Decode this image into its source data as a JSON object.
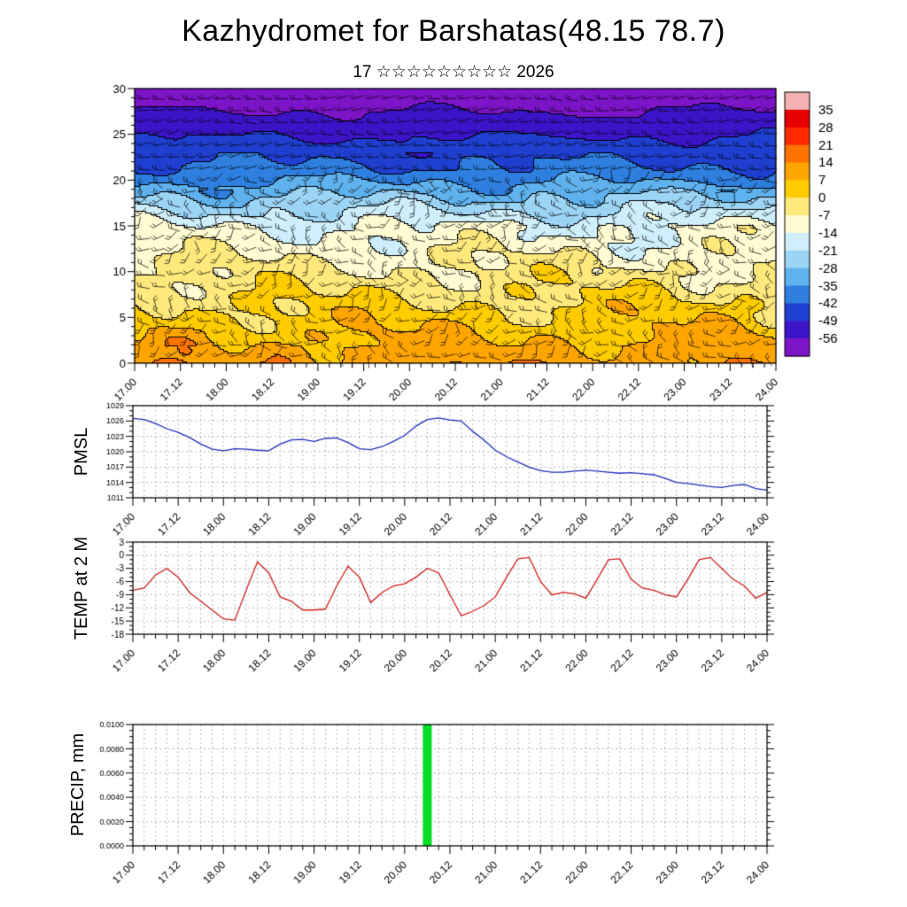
{
  "title": "Kazhydromet for Barshatas(48.15 78.7)",
  "subtitle": "17 ☆☆☆☆☆☆☆☆☆ 2026",
  "panel_labels": {
    "pmsl": "PMSL",
    "temp": "TEMP at 2 M",
    "precip": "PRECIP, mm"
  },
  "time_axis": {
    "tick_labels": [
      "17.00",
      "17.12",
      "18.00",
      "18.12",
      "19.00",
      "19.12",
      "20.00",
      "20.12",
      "21.00",
      "21.12",
      "22.00",
      "22.12",
      "23.00",
      "23.12",
      "24.00"
    ],
    "minor_step_hours": 3
  },
  "times": [
    "17.00",
    "17.03",
    "17.06",
    "17.09",
    "17.12",
    "17.15",
    "17.18",
    "17.21",
    "18.00",
    "18.03",
    "18.06",
    "18.09",
    "18.12",
    "18.15",
    "18.18",
    "18.21",
    "19.00",
    "19.03",
    "19.06",
    "19.09",
    "19.12",
    "19.15",
    "19.18",
    "19.21",
    "20.00",
    "20.03",
    "20.06",
    "20.09",
    "20.12",
    "20.15",
    "20.18",
    "20.21",
    "21.00",
    "21.03",
    "21.06",
    "21.09",
    "21.12",
    "21.15",
    "21.18",
    "21.21",
    "22.00",
    "22.03",
    "22.06",
    "22.09",
    "22.12",
    "22.15",
    "22.18",
    "22.21",
    "23.00",
    "23.03",
    "23.06",
    "23.09",
    "23.12",
    "23.15",
    "23.18",
    "23.21",
    "24.00"
  ],
  "chart_data": [
    {
      "id": "temperature-height-cross-section",
      "type": "heatmap",
      "overlay": "wind-barbs",
      "ylim": [
        0,
        30
      ],
      "yticks": [
        0,
        5,
        10,
        15,
        20,
        25,
        30
      ],
      "x_range_days": [
        17,
        24
      ],
      "colorbar_tick_labels": [
        "35",
        "28",
        "21",
        "14",
        "7",
        "0",
        "-7",
        "-14",
        "-21",
        "-28",
        "-35",
        "-42",
        "-49",
        "-56"
      ],
      "colorbar_colors": [
        "#f5b2b2",
        "#e60000",
        "#ff2a00",
        "#ff7300",
        "#ffa500",
        "#ffcc00",
        "#ffe97d",
        "#fffbd2",
        "#cfeefb",
        "#9cd4f5",
        "#5fb2ee",
        "#2f7fe0",
        "#1f3fd0",
        "#3c14c8",
        "#7d14c8"
      ],
      "approx_profile": {
        "heights": [
          0,
          11,
          15,
          21,
          30
        ],
        "temps": [
          12,
          -7,
          -14,
          -40,
          -62
        ]
      }
    },
    {
      "id": "pmsl",
      "type": "line",
      "label": "PMSL",
      "color": "#1f2fbf",
      "ylim": [
        1011,
        1029
      ],
      "yticks": [
        1011,
        1014,
        1017,
        1020,
        1023,
        1026,
        1029
      ],
      "minor_step": 1,
      "values": [
        1026.5,
        1026.3,
        1025.5,
        1024.5,
        1023.8,
        1022.8,
        1021.5,
        1020.5,
        1020.2,
        1020.6,
        1020.5,
        1020.3,
        1020.2,
        1021.5,
        1022.3,
        1022.4,
        1022.0,
        1022.6,
        1022.7,
        1021.8,
        1020.6,
        1020.4,
        1021.0,
        1022.0,
        1023.2,
        1025.0,
        1026.3,
        1026.6,
        1026.2,
        1026.0,
        1024.0,
        1022.3,
        1020.3,
        1019.0,
        1018.0,
        1017.0,
        1016.3,
        1016.0,
        1016.0,
        1016.2,
        1016.4,
        1016.2,
        1016.0,
        1015.8,
        1015.9,
        1015.7,
        1015.5,
        1014.8,
        1014.0,
        1013.8,
        1013.5,
        1013.2,
        1013.0,
        1013.4,
        1013.6,
        1012.8,
        1012.5
      ]
    },
    {
      "id": "temp-2m",
      "type": "line",
      "label": "TEMP at 2 M",
      "color": "#d02020",
      "ylim": [
        -18,
        3
      ],
      "yticks": [
        3,
        0,
        -3,
        -6,
        -9,
        -12,
        -15,
        -18
      ],
      "minor_step": 1,
      "values": [
        -8,
        -7.5,
        -4.5,
        -3,
        -5,
        -8.5,
        -10.5,
        -12.5,
        -14.5,
        -14.8,
        -8,
        -1.5,
        -4,
        -9.5,
        -10.5,
        -12.5,
        -12.5,
        -12.3,
        -7,
        -2.5,
        -5,
        -10.8,
        -8.5,
        -7.0,
        -6.5,
        -5.0,
        -3.0,
        -4.0,
        -9.0,
        -13.8,
        -12.8,
        -11.5,
        -9.5,
        -5.0,
        -0.8,
        -0.5,
        -6.0,
        -9.0,
        -8.5,
        -8.8,
        -9.8,
        -5.5,
        -1.0,
        -0.8,
        -5.5,
        -7.5,
        -8.0,
        -9.0,
        -9.5,
        -5.5,
        -1.0,
        -0.5,
        -3.0,
        -5.5,
        -7.0,
        -9.8,
        -8.5
      ]
    },
    {
      "id": "precip",
      "type": "bar",
      "label": "PRECIP, mm",
      "color": "#00dd22",
      "ylim": [
        0,
        0.01
      ],
      "ytick_labels": [
        "0.0000",
        "0.0020",
        "0.0040",
        "0.0060",
        "0.0080",
        "0.0100"
      ],
      "minor_step": 0.0005,
      "values": [
        0,
        0,
        0,
        0,
        0,
        0,
        0,
        0,
        0,
        0,
        0,
        0,
        0,
        0,
        0,
        0,
        0,
        0,
        0,
        0,
        0,
        0,
        0,
        0,
        0,
        0,
        0.01,
        0,
        0,
        0,
        0,
        0,
        0,
        0,
        0,
        0,
        0,
        0,
        0,
        0,
        0,
        0,
        0,
        0,
        0,
        0,
        0,
        0,
        0,
        0,
        0,
        0,
        0,
        0,
        0,
        0,
        0
      ]
    }
  ]
}
